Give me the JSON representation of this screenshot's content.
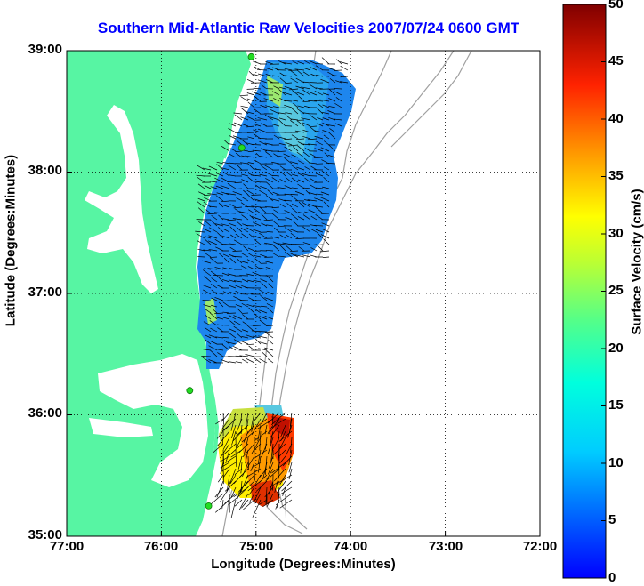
{
  "title": "Southern Mid-Atlantic Raw Velocities 2007/07/24 0600 GMT",
  "x_axis_label": "Longitude (Degrees:Minutes)",
  "y_axis_label": "Latitude (Degrees:Minutes)",
  "x_ticks": [
    "77:00",
    "76:00",
    "75:00",
    "74:00",
    "73:00",
    "72:00"
  ],
  "y_ticks": [
    "39:00",
    "38:00",
    "37:00",
    "36:00",
    "35:00"
  ],
  "colorbar": {
    "label": "Surface Velocity (cm/s)",
    "ticks": [
      "50",
      "45",
      "40",
      "35",
      "30",
      "25",
      "20",
      "15",
      "10",
      "5",
      "0"
    ],
    "range": [
      0,
      50
    ],
    "colormap": "jet"
  },
  "colors": {
    "land": "#57f5a3",
    "water": "#ffffff",
    "title": "#0000ff",
    "bathymetry": "#a0a0a0",
    "stations": "#22dd22"
  },
  "map_extent": {
    "lon": [
      -77,
      -72
    ],
    "lat": [
      35,
      39
    ]
  },
  "stations_lonlat": [
    [
      -75.05,
      38.95
    ],
    [
      -75.15,
      38.2
    ],
    [
      -75.7,
      36.2
    ],
    [
      -75.5,
      35.25
    ]
  ]
}
